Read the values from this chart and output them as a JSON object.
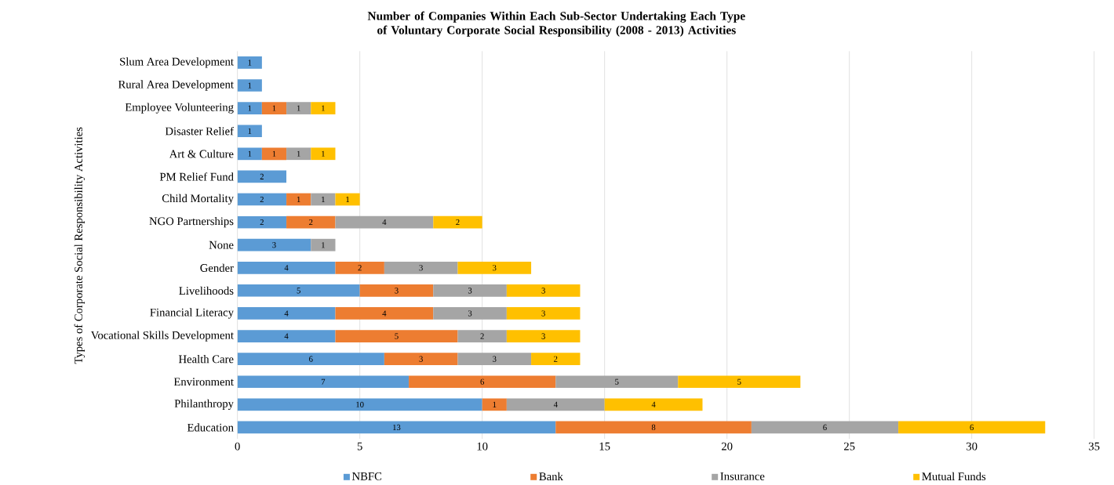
{
  "chart_data": {
    "type": "bar",
    "orientation": "horizontal",
    "stacked": true,
    "data_labels": true,
    "title": "Number of Companies Within Each Sub-Sector Undertaking Each Type of Voluntary Corporate Social Responsibility (2008 - 2013) Activities",
    "ylabel": "Types of Corporate Social Responsibility Activities",
    "categories": [
      "Slum Area Development",
      "Rural Area Development",
      "Employee Volunteering",
      "Disaster Relief",
      "Art & Culture",
      "PM Relief Fund",
      "Child Mortality",
      "NGO Partnerships",
      "None",
      "Gender",
      "Livelihoods",
      "Financial Literacy",
      "Vocational Skills Development",
      "Health Care",
      "Environment",
      "Philanthropy",
      "Education"
    ],
    "series": [
      {
        "name": "NBFC",
        "color": "#5b9bd5",
        "values": [
          1,
          1,
          1,
          1,
          1,
          2,
          2,
          2,
          3,
          4,
          5,
          4,
          4,
          6,
          7,
          10,
          13
        ]
      },
      {
        "name": "Bank",
        "color": "#ed7d31",
        "values": [
          null,
          null,
          1,
          null,
          1,
          null,
          1,
          2,
          null,
          2,
          3,
          4,
          5,
          3,
          6,
          1,
          8
        ]
      },
      {
        "name": "Insurance",
        "color": "#a5a5a5",
        "values": [
          null,
          null,
          1,
          null,
          1,
          null,
          1,
          4,
          1,
          3,
          3,
          3,
          2,
          3,
          5,
          4,
          6
        ]
      },
      {
        "name": "Mutual Funds",
        "color": "#ffc000",
        "values": [
          null,
          null,
          1,
          null,
          1,
          null,
          1,
          2,
          null,
          3,
          3,
          3,
          3,
          2,
          5,
          4,
          6
        ]
      }
    ],
    "xlim": [
      0,
      35
    ],
    "xticks": [
      0,
      5,
      10,
      15,
      20,
      25,
      30,
      35
    ],
    "grid": "x",
    "legend": "bottom"
  }
}
